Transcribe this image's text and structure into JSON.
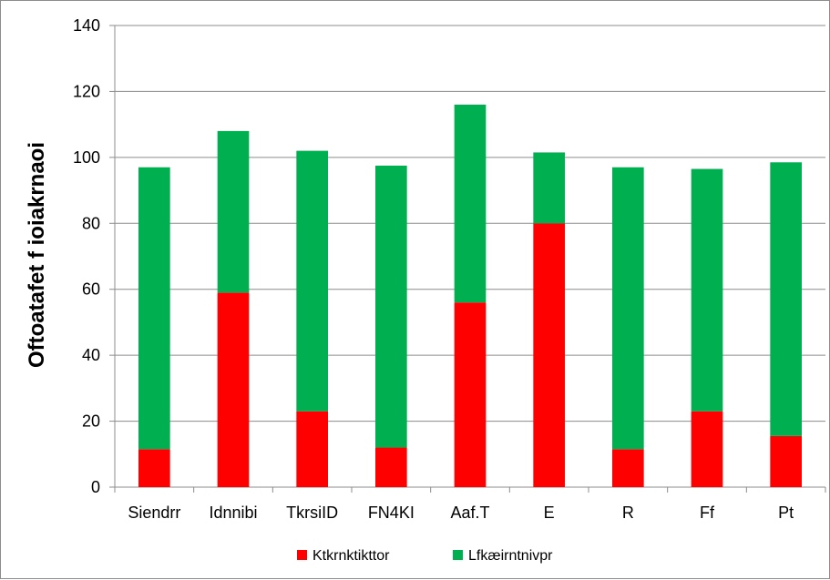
{
  "chart_data": {
    "type": "bar",
    "stacked": true,
    "title": "",
    "xlabel": "",
    "ylabel": "Oftoatafet f ioiakrnaoi",
    "ylim": [
      0,
      140
    ],
    "yticks": [
      0,
      20,
      40,
      60,
      80,
      100,
      120,
      140
    ],
    "grid": true,
    "legend_position": "bottom",
    "categories": [
      "Siendrr",
      "Idnnibi",
      "TkrsiID",
      "FN4KI",
      "Aaf.T",
      "E",
      "R",
      "Ff",
      "Pt"
    ],
    "series": [
      {
        "name": "Ktkrnktikttor",
        "color": "#ff0000",
        "values": [
          11.5,
          59,
          23,
          12,
          56,
          80,
          11.5,
          23,
          15.5
        ]
      },
      {
        "name": "Lfkæirntnivpr",
        "color": "#00b050",
        "values": [
          85.5,
          49,
          79,
          85.5,
          60,
          21.5,
          85.5,
          73.5,
          83
        ]
      }
    ]
  }
}
